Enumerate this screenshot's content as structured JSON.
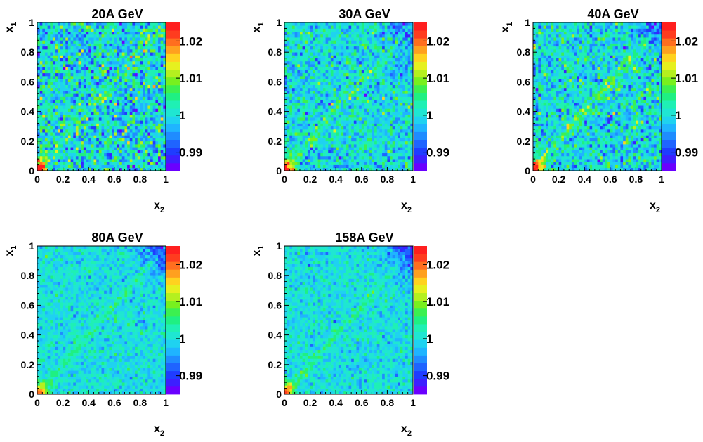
{
  "chart_data": [
    {
      "type": "heatmap",
      "title": "20A GeV",
      "xlabel": "x",
      "xlabel_sub": "2",
      "ylabel": "x",
      "ylabel_sub": "1",
      "xlim": [
        0,
        1
      ],
      "ylim": [
        0,
        1
      ],
      "x_ticks": [
        "0",
        "0.2",
        "0.4",
        "0.6",
        "0.8",
        "1"
      ],
      "y_ticks": [
        "0",
        "0.2",
        "0.4",
        "0.6",
        "0.8",
        "1"
      ],
      "zlim": [
        0.985,
        1.025
      ],
      "z_ticks": [
        "0.99",
        "1",
        "1.01",
        "1.02"
      ],
      "grid": false,
      "bins": 50,
      "features": {
        "background": 1.0,
        "noise": 0.0055,
        "diagonal_amp": 0.0055,
        "origin_amp": 0.025,
        "corner_amp": 0.0
      }
    },
    {
      "type": "heatmap",
      "title": "30A GeV",
      "xlabel": "x",
      "xlabel_sub": "2",
      "ylabel": "x",
      "ylabel_sub": "1",
      "xlim": [
        0,
        1
      ],
      "ylim": [
        0,
        1
      ],
      "x_ticks": [
        "0",
        "0.2",
        "0.4",
        "0.6",
        "0.8",
        "1"
      ],
      "y_ticks": [
        "0",
        "0.2",
        "0.4",
        "0.6",
        "0.8",
        "1"
      ],
      "zlim": [
        0.985,
        1.025
      ],
      "z_ticks": [
        "0.99",
        "1",
        "1.01",
        "1.02"
      ],
      "grid": false,
      "bins": 50,
      "features": {
        "background": 1.0,
        "noise": 0.004,
        "diagonal_amp": 0.005,
        "origin_amp": 0.022,
        "corner_amp": -0.008
      }
    },
    {
      "type": "heatmap",
      "title": "40A GeV",
      "xlabel": "x",
      "xlabel_sub": "2",
      "ylabel": "x",
      "ylabel_sub": "1",
      "xlim": [
        0,
        1
      ],
      "ylim": [
        0,
        1
      ],
      "x_ticks": [
        "0",
        "0.2",
        "0.4",
        "0.6",
        "0.8",
        "1"
      ],
      "y_ticks": [
        "0",
        "0.2",
        "0.4",
        "0.6",
        "0.8",
        "1"
      ],
      "zlim": [
        0.985,
        1.025
      ],
      "z_ticks": [
        "0.99",
        "1",
        "1.01",
        "1.02"
      ],
      "grid": false,
      "bins": 50,
      "features": {
        "background": 1.0,
        "noise": 0.0045,
        "diagonal_amp": 0.006,
        "origin_amp": 0.026,
        "corner_amp": -0.009
      }
    },
    {
      "type": "heatmap",
      "title": "80A GeV",
      "xlabel": "x",
      "xlabel_sub": "2",
      "ylabel": "x",
      "ylabel_sub": "1",
      "xlim": [
        0,
        1
      ],
      "ylim": [
        0,
        1
      ],
      "x_ticks": [
        "0",
        "0.2",
        "0.4",
        "0.6",
        "0.8",
        "1"
      ],
      "y_ticks": [
        "0",
        "0.2",
        "0.4",
        "0.6",
        "0.8",
        "1"
      ],
      "zlim": [
        0.985,
        1.025
      ],
      "z_ticks": [
        "0.99",
        "1",
        "1.01",
        "1.02"
      ],
      "grid": false,
      "bins": 50,
      "features": {
        "background": 1.0,
        "noise": 0.0025,
        "diagonal_amp": 0.0045,
        "origin_amp": 0.018,
        "corner_amp": -0.011
      }
    },
    {
      "type": "heatmap",
      "title": "158A GeV",
      "xlabel": "x",
      "xlabel_sub": "2",
      "ylabel": "x",
      "ylabel_sub": "1",
      "xlim": [
        0,
        1
      ],
      "ylim": [
        0,
        1
      ],
      "x_ticks": [
        "0",
        "0.2",
        "0.4",
        "0.6",
        "0.8",
        "1"
      ],
      "y_ticks": [
        "0",
        "0.2",
        "0.4",
        "0.6",
        "0.8",
        "1"
      ],
      "zlim": [
        0.985,
        1.025
      ],
      "z_ticks": [
        "0.99",
        "1",
        "1.01",
        "1.02"
      ],
      "grid": false,
      "bins": 50,
      "features": {
        "background": 1.0,
        "noise": 0.0025,
        "diagonal_amp": 0.0045,
        "origin_amp": 0.02,
        "corner_amp": -0.012
      }
    }
  ],
  "palette": [
    "#6a00ff",
    "#3d1fff",
    "#1f3cff",
    "#1f64ff",
    "#1f8cff",
    "#1fb4ff",
    "#1fd2f0",
    "#1fe6d2",
    "#1ff0b4",
    "#1ff082",
    "#3cf050",
    "#78f01f",
    "#b4f01f",
    "#e6f01f",
    "#ffd21f",
    "#ffa01f",
    "#ff6e1f",
    "#ff3c1f",
    "#ff1f1f"
  ]
}
